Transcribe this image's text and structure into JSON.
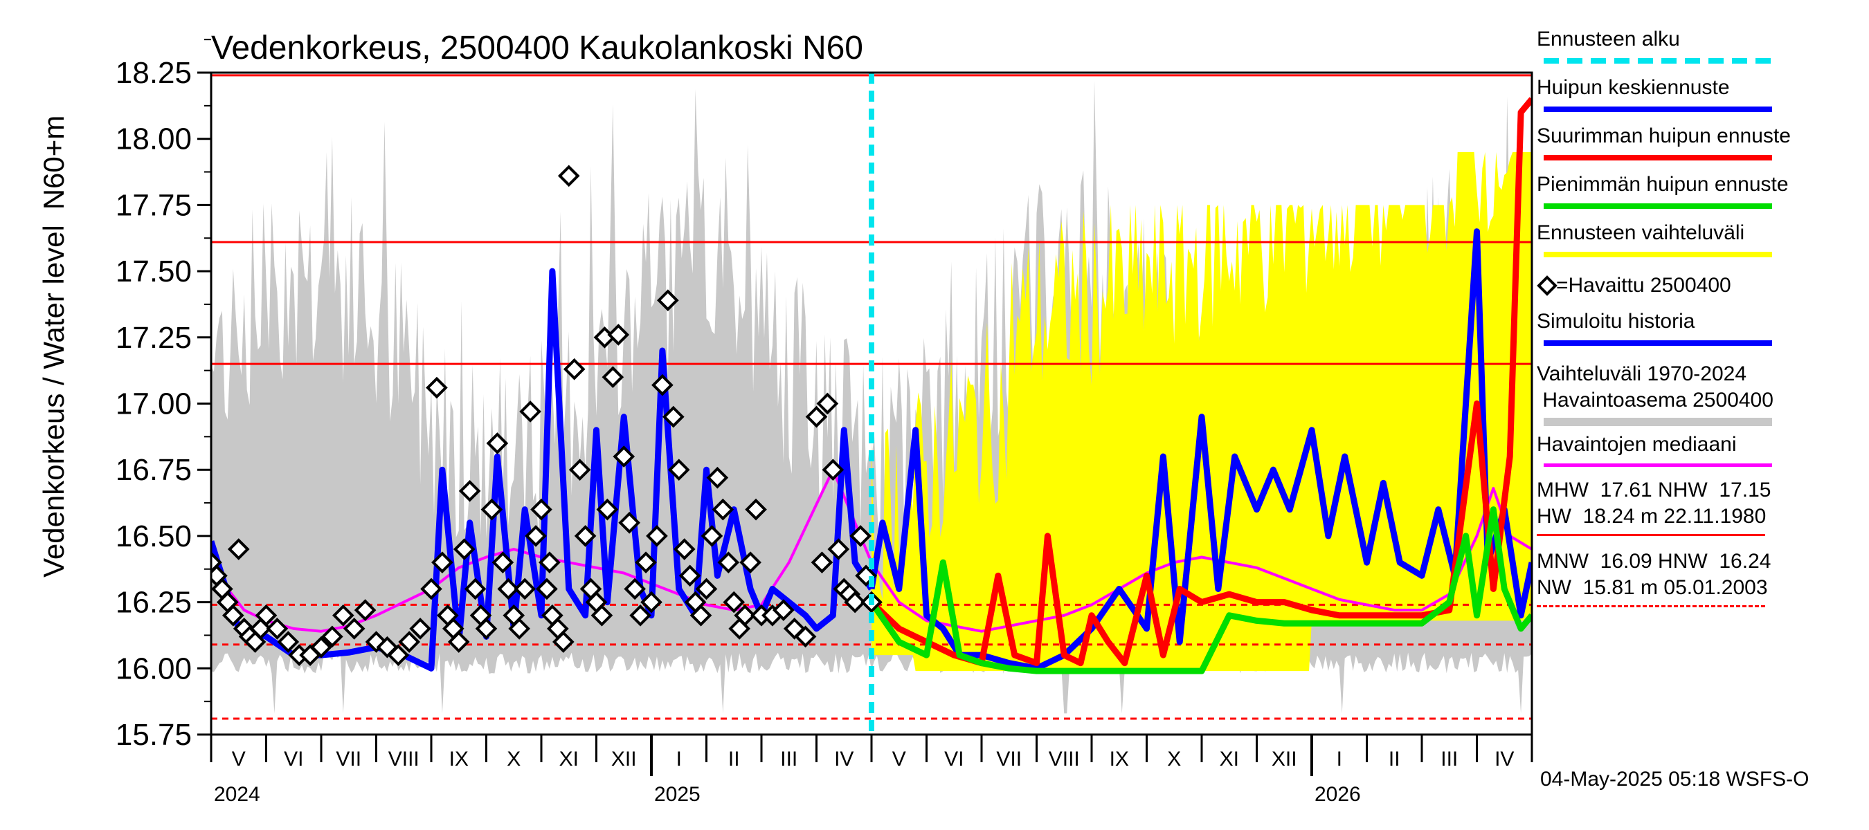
{
  "chart_data": {
    "type": "line",
    "title": "Vedenkorkeus, 2500400 Kaukolankoski N60",
    "ylabel_outer": "Vedenkorkeus / Water level",
    "ylabel_inner": "N60+m",
    "ylim": [
      15.75,
      18.25
    ],
    "yticks": [
      "15.75",
      "16.00",
      "16.25",
      "16.50",
      "16.75",
      "17.00",
      "17.25",
      "17.50",
      "17.75",
      "18.00",
      "18.25"
    ],
    "months": [
      "V",
      "VI",
      "VII",
      "VIII",
      "IX",
      "X",
      "XI",
      "XII",
      "I",
      "II",
      "III",
      "IV",
      "V",
      "VI",
      "VII",
      "VIII",
      "IX",
      "X",
      "XI",
      "XII",
      "I",
      "II",
      "III",
      "IV"
    ],
    "years": [
      "2024",
      "2025",
      "2026"
    ],
    "forecast_start": "2025-05-04",
    "reference_lines": [
      {
        "label": "MHW",
        "value": 17.61,
        "style": "solid"
      },
      {
        "label": "NHW",
        "value": 17.15,
        "style": "solid"
      },
      {
        "label": "HW",
        "value": 18.24,
        "style": "solid"
      },
      {
        "label": "MNW",
        "value": 16.09,
        "style": "dashed"
      },
      {
        "label": "HNW",
        "value": 16.24,
        "style": "dashed"
      },
      {
        "label": "NW",
        "value": 15.81,
        "style": "dashed"
      }
    ],
    "series": [
      {
        "name": "Havaintojen mediaani",
        "color": "#ff00ff",
        "x": [
          0,
          0.3,
          0.6,
          1,
          1.5,
          2,
          2.5,
          3,
          3.5,
          4,
          4.5,
          5,
          5.5,
          6,
          6.5,
          7,
          7.5,
          8,
          8.5,
          9,
          9.5,
          10,
          10.5,
          11,
          11.3,
          11.6,
          12,
          12.5,
          13,
          13.5,
          14,
          14.5,
          15,
          15.5,
          16,
          16.5,
          17,
          17.5,
          18,
          18.5,
          19,
          19.5,
          20,
          20.5,
          21,
          21.5,
          22,
          22.5,
          23,
          23.3,
          23.6,
          24
        ],
        "y": [
          16.4,
          16.3,
          16.22,
          16.18,
          16.15,
          16.14,
          16.16,
          16.2,
          16.25,
          16.3,
          16.38,
          16.42,
          16.45,
          16.42,
          16.4,
          16.38,
          16.36,
          16.32,
          16.28,
          16.24,
          16.22,
          16.24,
          16.4,
          16.62,
          16.75,
          16.6,
          16.4,
          16.25,
          16.18,
          16.16,
          16.14,
          16.16,
          16.18,
          16.2,
          16.24,
          16.3,
          16.36,
          16.4,
          16.42,
          16.4,
          16.38,
          16.34,
          16.3,
          16.26,
          16.24,
          16.22,
          16.22,
          16.28,
          16.5,
          16.68,
          16.5,
          16.45
        ]
      },
      {
        "name": "Simuloitu historia",
        "color": "#0000ff",
        "x": [
          0,
          0.5,
          1,
          1.5,
          2,
          2.5,
          3,
          3.5,
          4,
          4.2,
          4.5,
          4.7,
          5,
          5.2,
          5.5,
          5.7,
          6,
          6.2,
          6.5,
          6.8,
          7,
          7.2,
          7.5,
          7.8,
          8,
          8.2,
          8.5,
          8.8,
          9,
          9.2,
          9.5,
          9.8,
          10,
          10.2,
          10.5,
          10.8,
          11,
          11.3,
          11.5,
          11.7,
          12
        ],
        "y": [
          16.48,
          16.15,
          16.12,
          16.05,
          16.05,
          16.06,
          16.08,
          16.05,
          16.0,
          16.75,
          16.1,
          16.55,
          16.12,
          16.8,
          16.15,
          16.6,
          16.2,
          17.5,
          16.3,
          16.2,
          16.9,
          16.25,
          16.95,
          16.3,
          16.2,
          17.2,
          16.3,
          16.2,
          16.75,
          16.35,
          16.6,
          16.3,
          16.2,
          16.3,
          16.25,
          16.2,
          16.15,
          16.2,
          16.9,
          16.4,
          16.3
        ]
      },
      {
        "name": "Huipun keskiennuste",
        "color": "#0000ff",
        "x": [
          12,
          12.2,
          12.5,
          12.8,
          13,
          13.3,
          13.6,
          14,
          14.5,
          15,
          15.5,
          16,
          16.5,
          17,
          17.3,
          17.6,
          18,
          18.3,
          18.6,
          19,
          19.3,
          19.6,
          20,
          20.3,
          20.6,
          21,
          21.3,
          21.6,
          22,
          22.3,
          22.6,
          23,
          23.2,
          23.5,
          23.8,
          24
        ],
        "y": [
          16.3,
          16.55,
          16.3,
          16.9,
          16.2,
          16.15,
          16.05,
          16.05,
          16.02,
          16.0,
          16.05,
          16.15,
          16.3,
          16.15,
          16.8,
          16.1,
          16.95,
          16.3,
          16.8,
          16.6,
          16.75,
          16.6,
          16.9,
          16.5,
          16.8,
          16.4,
          16.7,
          16.4,
          16.35,
          16.6,
          16.35,
          17.65,
          16.4,
          16.6,
          16.2,
          16.4
        ]
      },
      {
        "name": "Suurimman huipun ennuste",
        "color": "#ff0000",
        "x": [
          12,
          12.5,
          13,
          13.5,
          14,
          14.3,
          14.6,
          15,
          15.2,
          15.5,
          15.8,
          16,
          16.3,
          16.6,
          17,
          17.3,
          17.6,
          18,
          18.5,
          19,
          19.5,
          20,
          20.5,
          21,
          21.5,
          22,
          22.5,
          23,
          23.3,
          23.6,
          23.8,
          24
        ],
        "y": [
          16.25,
          16.15,
          16.1,
          16.05,
          16.02,
          16.35,
          16.05,
          16.02,
          16.5,
          16.05,
          16.02,
          16.2,
          16.1,
          16.02,
          16.35,
          16.05,
          16.3,
          16.25,
          16.28,
          16.25,
          16.25,
          16.22,
          16.2,
          16.2,
          16.2,
          16.2,
          16.22,
          17.0,
          16.3,
          16.8,
          18.1,
          18.15
        ]
      },
      {
        "name": "Pienimmän huipun ennuste",
        "color": "#00dd00",
        "x": [
          12,
          12.5,
          13,
          13.3,
          13.6,
          14,
          14.5,
          15,
          15.5,
          16,
          16.5,
          17,
          17.5,
          18,
          18.5,
          19,
          19.5,
          20,
          20.5,
          21,
          21.5,
          22,
          22.5,
          22.8,
          23,
          23.3,
          23.5,
          23.8,
          24
        ],
        "y": [
          16.25,
          16.1,
          16.05,
          16.4,
          16.05,
          16.02,
          16.0,
          15.99,
          15.99,
          15.99,
          15.99,
          15.99,
          15.99,
          15.99,
          16.2,
          16.18,
          16.17,
          16.17,
          16.17,
          16.17,
          16.17,
          16.17,
          16.25,
          16.5,
          16.2,
          16.6,
          16.3,
          16.15,
          16.2
        ]
      },
      {
        "name": "=Havaittu 2500400",
        "x": [
          0,
          0.1,
          0.2,
          0.3,
          0.4,
          0.5,
          0.6,
          0.7,
          0.8,
          0.9,
          1.0,
          1.2,
          1.4,
          1.6,
          1.8,
          2.0,
          2.2,
          2.4,
          2.6,
          2.8,
          3.0,
          3.2,
          3.4,
          3.6,
          3.8,
          4.0,
          4.1,
          4.2,
          4.3,
          4.4,
          4.5,
          4.6,
          4.7,
          4.8,
          4.9,
          5.0,
          5.1,
          5.2,
          5.3,
          5.4,
          5.5,
          5.6,
          5.7,
          5.8,
          5.9,
          6.0,
          6.1,
          6.15,
          6.2,
          6.3,
          6.4,
          6.5,
          6.6,
          6.7,
          6.8,
          6.9,
          7.0,
          7.1,
          7.15,
          7.2,
          7.3,
          7.4,
          7.5,
          7.6,
          7.7,
          7.8,
          7.9,
          8.0,
          8.1,
          8.2,
          8.3,
          8.4,
          8.5,
          8.6,
          8.7,
          8.8,
          8.9,
          9.0,
          9.1,
          9.2,
          9.3,
          9.4,
          9.5,
          9.6,
          9.7,
          9.8,
          9.9,
          10.0,
          10.2,
          10.4,
          10.6,
          10.8,
          11.0,
          11.1,
          11.2,
          11.3,
          11.4,
          11.5,
          11.6,
          11.7,
          11.8,
          11.9,
          12.0
        ],
        "y": [
          16.4,
          16.35,
          16.3,
          16.25,
          16.2,
          16.45,
          16.15,
          16.12,
          16.1,
          16.15,
          16.2,
          16.15,
          16.1,
          16.05,
          16.05,
          16.08,
          16.12,
          16.2,
          16.15,
          16.22,
          16.1,
          16.08,
          16.05,
          16.1,
          16.15,
          16.3,
          17.06,
          16.4,
          16.2,
          16.15,
          16.1,
          16.45,
          16.67,
          16.3,
          16.2,
          16.15,
          16.6,
          16.85,
          16.4,
          16.3,
          16.2,
          16.15,
          16.3,
          16.97,
          16.5,
          16.6,
          16.3,
          16.4,
          16.2,
          16.15,
          16.1,
          17.86,
          17.13,
          16.75,
          16.5,
          16.3,
          16.25,
          16.2,
          17.25,
          16.6,
          17.1,
          17.26,
          16.8,
          16.55,
          16.3,
          16.2,
          16.4,
          16.25,
          16.5,
          17.07,
          17.39,
          16.95,
          16.75,
          16.45,
          16.35,
          16.25,
          16.2,
          16.3,
          16.5,
          16.72,
          16.6,
          16.4,
          16.25,
          16.15,
          16.2,
          16.4,
          16.6,
          16.2,
          16.2,
          16.22,
          16.15,
          16.12,
          16.95,
          16.4,
          17.0,
          16.75,
          16.45,
          16.3,
          16.28,
          16.25,
          16.5,
          16.35,
          16.25
        ]
      }
    ],
    "legend": {
      "ennusteen_alku": "Ennusteen alku",
      "huipun_keskiennuste": "Huipun keskiennuste",
      "suurimman": "Suurimman huipun ennuste",
      "pienimman": "Pienimmän huipun ennuste",
      "vaihteluvali": "Ennusteen vaihteluväli",
      "havaittu": "=Havaittu 2500400",
      "simuloitu": "Simuloitu historia",
      "historia_range_1": "Vaihteluväli 1970-2024",
      "historia_range_2": " Havaintoasema 2500400",
      "mediaani": "Havaintojen mediaani"
    },
    "stats": {
      "row1": "MHW  17.61 NHW  17.15",
      "row2": "HW  18.24 m 22.11.1980",
      "row3": "MNW  16.09 HNW  16.24",
      "row4": "NW  15.81 m 05.01.2003"
    },
    "colors": {
      "forecast_start": "#00e5ee",
      "mean_forecast": "#0000ff",
      "max_forecast": "#ff0000",
      "min_forecast": "#00dd00",
      "forecast_range": "#ffff00",
      "history_range": "#c8c8c8",
      "simulated": "#0000ff",
      "median": "#ff00ff",
      "ref_line": "#ff0000"
    }
  },
  "footer": "04-May-2025 05:18 WSFS-O"
}
